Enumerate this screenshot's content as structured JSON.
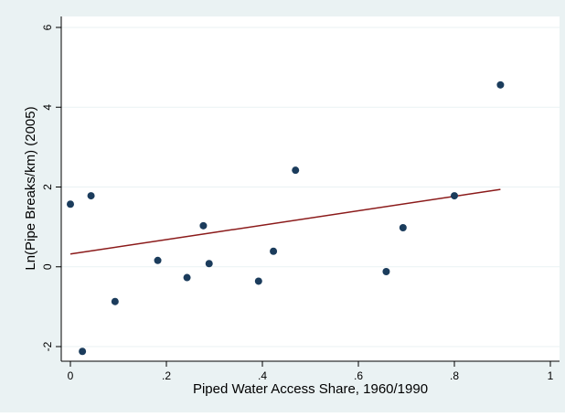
{
  "chart_data": {
    "type": "scatter",
    "xlabel": "Piped Water Access Share, 1960/1990",
    "ylabel": "Ln(Pipe Breaks/km) (2005)",
    "xlim": [
      0,
      1
    ],
    "ylim": [
      -2,
      6
    ],
    "x_ticks": [
      0,
      0.2,
      0.4,
      0.6,
      0.8,
      1
    ],
    "x_tick_labels": [
      "0",
      ".2",
      ".4",
      ".6",
      ".8",
      "1"
    ],
    "y_ticks": [
      -2,
      0,
      2,
      4,
      6
    ],
    "y_tick_labels": [
      "-2",
      "0",
      "2",
      "4",
      "6"
    ],
    "grid": "horizontal",
    "series": [
      {
        "type": "scatter",
        "color": "#1b3c5c",
        "points": [
          [
            0.0,
            1.57
          ],
          [
            0.025,
            -2.12
          ],
          [
            0.043,
            1.78
          ],
          [
            0.093,
            -0.87
          ],
          [
            0.182,
            0.16
          ],
          [
            0.243,
            -0.27
          ],
          [
            0.277,
            1.03
          ],
          [
            0.289,
            0.08
          ],
          [
            0.392,
            -0.36
          ],
          [
            0.423,
            0.39
          ],
          [
            0.469,
            2.42
          ],
          [
            0.658,
            -0.12
          ],
          [
            0.693,
            0.98
          ],
          [
            0.8,
            1.78
          ],
          [
            0.896,
            4.56
          ]
        ]
      },
      {
        "type": "line",
        "color": "#8b1a1a",
        "points": [
          [
            0.0,
            0.32
          ],
          [
            0.896,
            1.94
          ]
        ]
      }
    ],
    "colors": {
      "background": "#eaf2f3",
      "plot_area": "#ffffff",
      "grid": "#eaf2f3"
    }
  }
}
